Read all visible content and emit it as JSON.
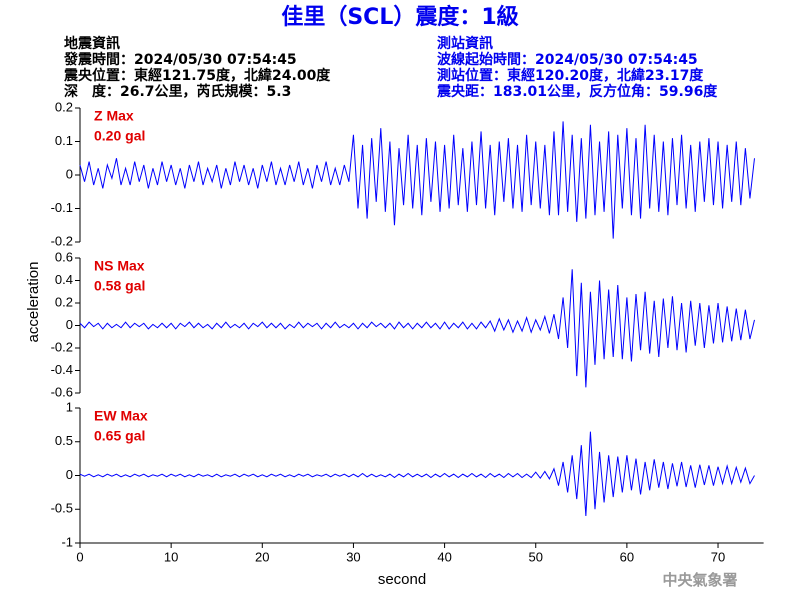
{
  "header": {
    "title": "佳里（SCL）震度：1級",
    "quake_info": [
      "地震資訊",
      "發震時間：2024/05/30 07:54:45",
      "震央位置：東經121.75度，北緯24.00度",
      "深　度：26.7公里，芮氏規模：5.3"
    ],
    "station_info": [
      "測站資訊",
      "波線起始時間：2024/05/30 07:54:45",
      "測站位置：東經120.20度，北緯23.17度",
      "震央距：183.01公里，反方位角：59.96度"
    ]
  },
  "y_label": "acceleration",
  "footer": "中央氣象署",
  "chart_data": [
    {
      "type": "line",
      "annotations": [
        "Z Max",
        "0.20 gal"
      ],
      "color": "#0000ff",
      "xlim": [
        0,
        75
      ],
      "ylim": [
        -0.2,
        0.2
      ],
      "yticks": [
        0.2,
        0.1,
        0,
        -0.1,
        -0.2
      ],
      "x": [
        0,
        0.5,
        1,
        1.5,
        2,
        2.5,
        3,
        3.5,
        4,
        4.5,
        5,
        5.5,
        6,
        6.5,
        7,
        7.5,
        8,
        8.5,
        9,
        9.5,
        10,
        10.5,
        11,
        11.5,
        12,
        12.5,
        13,
        13.5,
        14,
        14.5,
        15,
        15.5,
        16,
        16.5,
        17,
        17.5,
        18,
        18.5,
        19,
        19.5,
        20,
        20.5,
        21,
        21.5,
        22,
        22.5,
        23,
        23.5,
        24,
        24.5,
        25,
        25.5,
        26,
        26.5,
        27,
        27.5,
        28,
        28.5,
        29,
        29.5,
        30,
        30.5,
        31,
        31.5,
        32,
        32.5,
        33,
        33.5,
        34,
        34.5,
        35,
        35.5,
        36,
        36.5,
        37,
        37.5,
        38,
        38.5,
        39,
        39.5,
        40,
        40.5,
        41,
        41.5,
        42,
        42.5,
        43,
        43.5,
        44,
        44.5,
        45,
        45.5,
        46,
        46.5,
        47,
        47.5,
        48,
        48.5,
        49,
        49.5,
        50,
        50.5,
        51,
        51.5,
        52,
        52.5,
        53,
        53.5,
        54,
        54.5,
        55,
        55.5,
        56,
        56.5,
        57,
        57.5,
        58,
        58.5,
        59,
        59.5,
        60,
        60.5,
        61,
        61.5,
        62,
        62.5,
        63,
        63.5,
        64,
        64.5,
        65,
        65.5,
        66,
        66.5,
        67,
        67.5,
        68,
        68.5,
        69,
        69.5,
        70,
        70.5,
        71,
        71.5,
        72,
        72.5,
        73,
        73.5,
        74
      ],
      "values": [
        0.03,
        -0.02,
        0.04,
        -0.03,
        0.02,
        -0.04,
        0.03,
        -0.01,
        0.05,
        -0.03,
        0.02,
        -0.03,
        0.04,
        -0.02,
        0.03,
        -0.04,
        0.02,
        -0.03,
        0.04,
        -0.02,
        0.03,
        -0.03,
        0.02,
        -0.04,
        0.03,
        -0.02,
        0.04,
        -0.03,
        0.02,
        -0.02,
        0.03,
        -0.04,
        0.02,
        -0.03,
        0.04,
        -0.02,
        0.03,
        -0.03,
        0.02,
        -0.04,
        0.03,
        -0.02,
        0.04,
        -0.03,
        0.02,
        -0.03,
        0.03,
        -0.02,
        0.04,
        -0.03,
        0.02,
        -0.04,
        0.03,
        -0.02,
        0.04,
        -0.03,
        0.02,
        -0.03,
        0.03,
        -0.02,
        0.12,
        -0.1,
        0.09,
        -0.13,
        0.11,
        -0.08,
        0.14,
        -0.11,
        0.1,
        -0.15,
        0.08,
        -0.09,
        0.12,
        -0.1,
        0.09,
        -0.12,
        0.11,
        -0.08,
        0.1,
        -0.11,
        0.09,
        -0.1,
        0.12,
        -0.09,
        0.08,
        -0.11,
        0.1,
        -0.09,
        0.13,
        -0.1,
        0.09,
        -0.12,
        0.1,
        -0.08,
        0.11,
        -0.1,
        0.09,
        -0.11,
        0.12,
        -0.09,
        0.1,
        -0.1,
        0.09,
        -0.12,
        0.13,
        -0.12,
        0.16,
        -0.11,
        0.12,
        -0.14,
        0.11,
        -0.13,
        0.15,
        -0.12,
        0.1,
        -0.11,
        0.13,
        -0.19,
        0.12,
        -0.1,
        0.14,
        -0.12,
        0.11,
        -0.13,
        0.15,
        -0.1,
        0.12,
        -0.11,
        0.1,
        -0.12,
        0.11,
        -0.09,
        0.12,
        -0.1,
        0.09,
        -0.11,
        0.1,
        -0.08,
        0.11,
        -0.09,
        0.1,
        -0.1,
        0.09,
        -0.08,
        0.1,
        -0.09,
        0.08,
        -0.07,
        0.05
      ]
    },
    {
      "type": "line",
      "annotations": [
        "NS Max",
        "0.58 gal"
      ],
      "color": "#0000ff",
      "xlim": [
        0,
        75
      ],
      "ylim": [
        -0.6,
        0.6
      ],
      "yticks": [
        0.6,
        0.4,
        0.2,
        0,
        -0.2,
        -0.4,
        -0.6
      ],
      "x": [
        0,
        0.5,
        1,
        1.5,
        2,
        2.5,
        3,
        3.5,
        4,
        4.5,
        5,
        5.5,
        6,
        6.5,
        7,
        7.5,
        8,
        8.5,
        9,
        9.5,
        10,
        10.5,
        11,
        11.5,
        12,
        12.5,
        13,
        13.5,
        14,
        14.5,
        15,
        15.5,
        16,
        16.5,
        17,
        17.5,
        18,
        18.5,
        19,
        19.5,
        20,
        20.5,
        21,
        21.5,
        22,
        22.5,
        23,
        23.5,
        24,
        24.5,
        25,
        25.5,
        26,
        26.5,
        27,
        27.5,
        28,
        28.5,
        29,
        29.5,
        30,
        30.5,
        31,
        31.5,
        32,
        32.5,
        33,
        33.5,
        34,
        34.5,
        35,
        35.5,
        36,
        36.5,
        37,
        37.5,
        38,
        38.5,
        39,
        39.5,
        40,
        40.5,
        41,
        41.5,
        42,
        42.5,
        43,
        43.5,
        44,
        44.5,
        45,
        45.5,
        46,
        46.5,
        47,
        47.5,
        48,
        48.5,
        49,
        49.5,
        50,
        50.5,
        51,
        51.5,
        52,
        52.5,
        53,
        53.5,
        54,
        54.5,
        55,
        55.5,
        56,
        56.5,
        57,
        57.5,
        58,
        58.5,
        59,
        59.5,
        60,
        60.5,
        61,
        61.5,
        62,
        62.5,
        63,
        63.5,
        64,
        64.5,
        65,
        65.5,
        66,
        66.5,
        67,
        67.5,
        68,
        68.5,
        69,
        69.5,
        70,
        70.5,
        71,
        71.5,
        72,
        72.5,
        73,
        73.5,
        74
      ],
      "values": [
        0.02,
        -0.02,
        0.03,
        -0.01,
        0.02,
        -0.03,
        0.02,
        -0.02,
        0.01,
        -0.02,
        0.03,
        -0.02,
        0.02,
        -0.01,
        0.02,
        -0.03,
        0.01,
        -0.02,
        0.02,
        -0.02,
        0.02,
        -0.03,
        0.02,
        -0.01,
        0.03,
        -0.02,
        0.02,
        -0.02,
        0.01,
        -0.03,
        0.02,
        -0.02,
        0.03,
        -0.02,
        0.01,
        -0.02,
        0.02,
        -0.03,
        0.02,
        -0.01,
        0.03,
        -0.02,
        0.02,
        -0.02,
        0.02,
        -0.03,
        0.01,
        -0.02,
        0.03,
        -0.02,
        0.02,
        -0.01,
        0.02,
        -0.03,
        0.02,
        -0.02,
        0.03,
        -0.02,
        0.01,
        -0.02,
        0.02,
        -0.03,
        0.02,
        -0.02,
        0.03,
        -0.01,
        0.02,
        -0.02,
        0.02,
        -0.03,
        0.03,
        -0.02,
        0.02,
        -0.03,
        0.02,
        -0.02,
        0.03,
        -0.02,
        0.02,
        -0.03,
        0.03,
        -0.03,
        0.02,
        -0.02,
        0.03,
        -0.03,
        0.02,
        -0.03,
        0.03,
        -0.02,
        0.04,
        -0.05,
        0.06,
        -0.04,
        0.05,
        -0.06,
        0.04,
        -0.05,
        0.07,
        -0.06,
        0.05,
        -0.04,
        0.08,
        -0.07,
        0.1,
        -0.12,
        0.25,
        -0.2,
        0.5,
        -0.45,
        0.38,
        -0.55,
        0.3,
        -0.35,
        0.4,
        -0.3,
        0.32,
        -0.28,
        0.36,
        -0.3,
        0.25,
        -0.32,
        0.28,
        -0.22,
        0.3,
        -0.25,
        0.22,
        -0.28,
        0.24,
        -0.2,
        0.26,
        -0.22,
        0.2,
        -0.24,
        0.22,
        -0.18,
        0.2,
        -0.2,
        0.18,
        -0.16,
        0.2,
        -0.15,
        0.17,
        -0.14,
        0.15,
        -0.13,
        0.14,
        -0.12,
        0.05
      ]
    },
    {
      "type": "line",
      "annotations": [
        "EW Max",
        "0.65 gal"
      ],
      "color": "#0000ff",
      "xlim": [
        0,
        75
      ],
      "ylim": [
        -1,
        1
      ],
      "yticks": [
        1,
        0.5,
        0,
        -0.5,
        -1
      ],
      "xticks": [
        0,
        10,
        20,
        30,
        40,
        50,
        60,
        70
      ],
      "x_label": "second",
      "x": [
        0,
        0.5,
        1,
        1.5,
        2,
        2.5,
        3,
        3.5,
        4,
        4.5,
        5,
        5.5,
        6,
        6.5,
        7,
        7.5,
        8,
        8.5,
        9,
        9.5,
        10,
        10.5,
        11,
        11.5,
        12,
        12.5,
        13,
        13.5,
        14,
        14.5,
        15,
        15.5,
        16,
        16.5,
        17,
        17.5,
        18,
        18.5,
        19,
        19.5,
        20,
        20.5,
        21,
        21.5,
        22,
        22.5,
        23,
        23.5,
        24,
        24.5,
        25,
        25.5,
        26,
        26.5,
        27,
        27.5,
        28,
        28.5,
        29,
        29.5,
        30,
        30.5,
        31,
        31.5,
        32,
        32.5,
        33,
        33.5,
        34,
        34.5,
        35,
        35.5,
        36,
        36.5,
        37,
        37.5,
        38,
        38.5,
        39,
        39.5,
        40,
        40.5,
        41,
        41.5,
        42,
        42.5,
        43,
        43.5,
        44,
        44.5,
        45,
        45.5,
        46,
        46.5,
        47,
        47.5,
        48,
        48.5,
        49,
        49.5,
        50,
        50.5,
        51,
        51.5,
        52,
        52.5,
        53,
        53.5,
        54,
        54.5,
        55,
        55.5,
        56,
        56.5,
        57,
        57.5,
        58,
        58.5,
        59,
        59.5,
        60,
        60.5,
        61,
        61.5,
        62,
        62.5,
        63,
        63.5,
        64,
        64.5,
        65,
        65.5,
        66,
        66.5,
        67,
        67.5,
        68,
        68.5,
        69,
        69.5,
        70,
        70.5,
        71,
        71.5,
        72,
        72.5,
        73,
        73.5,
        74
      ],
      "values": [
        0.02,
        -0.01,
        0.02,
        -0.02,
        0.01,
        -0.02,
        0.02,
        -0.01,
        0.02,
        -0.02,
        0.01,
        -0.02,
        0.02,
        -0.01,
        0.02,
        -0.02,
        0.01,
        -0.01,
        0.02,
        -0.02,
        0.02,
        -0.01,
        0.02,
        -0.02,
        0.01,
        -0.02,
        0.02,
        -0.01,
        0.01,
        -0.02,
        0.02,
        -0.02,
        0.01,
        -0.01,
        0.02,
        -0.02,
        0.02,
        -0.01,
        0.02,
        -0.02,
        0.01,
        -0.02,
        0.02,
        -0.01,
        0.02,
        -0.02,
        0.01,
        -0.02,
        0.02,
        -0.01,
        0.02,
        -0.02,
        0.01,
        -0.01,
        0.02,
        -0.02,
        0.02,
        -0.01,
        0.02,
        -0.02,
        0.02,
        -0.02,
        0.03,
        -0.02,
        0.02,
        -0.02,
        0.01,
        -0.02,
        0.02,
        -0.03,
        0.02,
        -0.02,
        0.03,
        -0.02,
        0.02,
        -0.02,
        0.02,
        -0.03,
        0.02,
        -0.02,
        0.03,
        -0.02,
        0.02,
        -0.03,
        0.02,
        -0.02,
        0.03,
        -0.02,
        0.02,
        -0.03,
        0.03,
        -0.02,
        0.02,
        -0.03,
        0.03,
        -0.02,
        0.03,
        -0.03,
        0.02,
        -0.03,
        0.05,
        -0.04,
        0.06,
        -0.05,
        0.1,
        -0.15,
        0.2,
        -0.25,
        0.3,
        -0.35,
        0.45,
        -0.6,
        0.65,
        -0.5,
        0.35,
        -0.4,
        0.3,
        -0.32,
        0.28,
        -0.25,
        0.3,
        -0.22,
        0.25,
        -0.28,
        0.2,
        -0.22,
        0.24,
        -0.18,
        0.2,
        -0.2,
        0.18,
        -0.16,
        0.2,
        -0.17,
        0.15,
        -0.18,
        0.16,
        -0.14,
        0.15,
        -0.15,
        0.13,
        -0.12,
        0.14,
        -0.12,
        0.12,
        -0.1,
        0.11,
        -0.12,
        0
      ]
    }
  ]
}
